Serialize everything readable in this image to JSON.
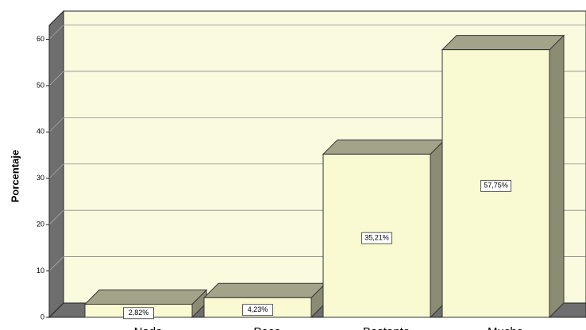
{
  "chart_data": {
    "type": "bar3d",
    "ylabel": "Porcentaje",
    "categories": [
      "Nada",
      "Poco",
      "Bastante",
      "Mucho"
    ],
    "values": [
      2.82,
      4.23,
      35.21,
      57.75
    ],
    "value_labels": [
      "2,82%",
      "4,23%",
      "35,21%",
      "57,75%"
    ],
    "color": "#fafad2",
    "ylim": [
      0,
      63
    ],
    "yticks": [
      0,
      10,
      20,
      30,
      40,
      50,
      60
    ],
    "grid": true
  }
}
